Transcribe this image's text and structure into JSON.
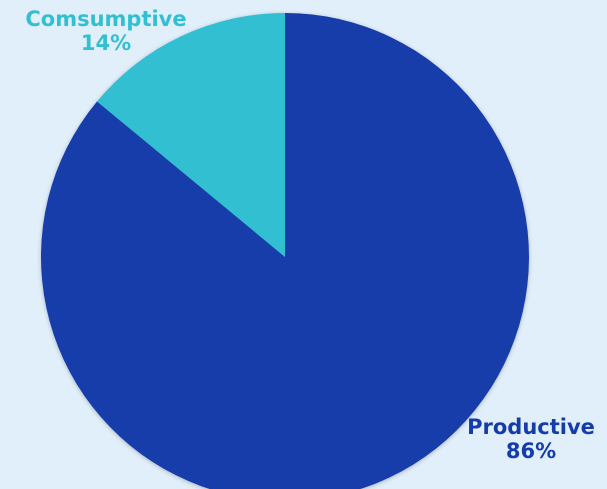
{
  "chart_data": {
    "type": "pie",
    "categories": [
      "Comsumptive",
      "Productive"
    ],
    "values": [
      14,
      86
    ],
    "value_labels": [
      "14%",
      "86%"
    ],
    "colors": [
      "#32bfd1",
      "#143caa"
    ],
    "background": "#e1effb",
    "start": "top, clockwise from 12 o'clock",
    "title": ""
  }
}
